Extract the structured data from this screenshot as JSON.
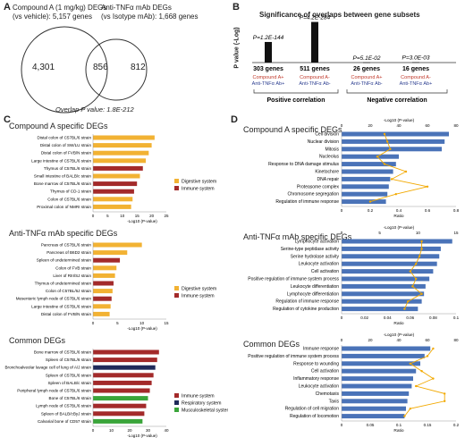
{
  "panels": {
    "A": {
      "label": "A",
      "set1": "Compound A (1 mg/kg) DEGs",
      "set1_sub": "(vs vehicle): 5,157 genes",
      "set2": "Anti-TNFα mAb DEGs",
      "set2_sub": "(vs Isotype mAb): 1,668 genes",
      "left_only": "4,301",
      "overlap": "856",
      "right_only": "812",
      "pvalue_note": "Overlap P value: 1.8E-212"
    },
    "B": {
      "label": "B",
      "title": "Significance of overlaps between gene subsets",
      "ylabel": "P value (-Log)",
      "groups": [
        {
          "genes": "303 genes",
          "line1": "Compound A+",
          "line2": "Anti-TNFα Ab+",
          "p": "P=1.2E-144"
        },
        {
          "genes": "511 genes",
          "line1": "Compound A-",
          "line2": "Anti-TNFα Ab-",
          "p": "P=4.2E-284"
        },
        {
          "genes": "26 genes",
          "line1": "Compound A+",
          "line2": "Anti-TNFα Ab-",
          "p": "P=5.1E-02"
        },
        {
          "genes": "16 genes",
          "line1": "Compound A-",
          "line2": "Anti-TNFα Ab+",
          "p": "P=3.0E-03"
        }
      ],
      "positive": "Positive correlation",
      "negative": "Negative correlation"
    },
    "C": {
      "label": "C",
      "xlabel": "-Log10 (P-value)",
      "colors": {
        "digestive": "#f2b233",
        "immune": "#a32a2a",
        "respiratory": "#1f2a5a",
        "musculo": "#3aa53a"
      },
      "subpanels": [
        {
          "title": "Compound A specific DEGs",
          "xticks": [
            "0",
            "5",
            "10",
            "15",
            "20",
            "25"
          ],
          "xmax": 25,
          "legend": [
            {
              "label": "Digestive system",
              "color": "#f2b233"
            },
            {
              "label": "Immune system",
              "color": "#a32a2a"
            }
          ],
          "bars": [
            {
              "label": "Distal colon of C57BL/6 strain",
              "value": 21,
              "color": "#f2b233"
            },
            {
              "label": "Distal colon of SW/LU strain",
              "value": 20,
              "color": "#f2b233"
            },
            {
              "label": "Distal colon of FVB/N strain",
              "value": 19,
              "color": "#f2b233"
            },
            {
              "label": "Large intestine of C57BL/6 strain",
              "value": 18,
              "color": "#f2b233"
            },
            {
              "label": "Thymus of C57BL/6 strain",
              "value": 17,
              "color": "#a32a2a"
            },
            {
              "label": "Small intestine of BALB/c strain",
              "value": 16,
              "color": "#f2b233"
            },
            {
              "label": "Bone marrow of C57BL/6 strain",
              "value": 15,
              "color": "#a32a2a"
            },
            {
              "label": "Thymus of CD-1 strain",
              "value": 14,
              "color": "#a32a2a"
            },
            {
              "label": "Colon of C57BL/6 strain",
              "value": 13.5,
              "color": "#f2b233"
            },
            {
              "label": "Proximal colon of NMRI strain",
              "value": 13,
              "color": "#f2b233"
            }
          ]
        },
        {
          "title": "Anti-TNFα mAb specific DEGs",
          "xticks": [
            "0",
            "5",
            "10",
            "15"
          ],
          "xmax": 15,
          "legend": [
            {
              "label": "Digestive system",
              "color": "#f2b233"
            },
            {
              "label": "Immune system",
              "color": "#a32a2a"
            }
          ],
          "bars": [
            {
              "label": "Pancreas of C57BL/6 strain",
              "value": 10,
              "color": "#f2b233"
            },
            {
              "label": "Pancreas of B6D2 strain",
              "value": 7,
              "color": "#f2b233"
            },
            {
              "label": "Spleen of undetermined strain",
              "value": 5.5,
              "color": "#a32a2a"
            },
            {
              "label": "Colon of FVB strain",
              "value": 4.8,
              "color": "#f2b233"
            },
            {
              "label": "Liver of RIII/SJ strain",
              "value": 4.5,
              "color": "#f2b233"
            },
            {
              "label": "Thymus of undetermined strain",
              "value": 4.2,
              "color": "#a32a2a"
            },
            {
              "label": "Colon of C57BL/6J strain",
              "value": 4,
              "color": "#f2b233"
            },
            {
              "label": "Mesenteric lymph node of C57BL/6 strain",
              "value": 3.8,
              "color": "#a32a2a"
            },
            {
              "label": "Large intestine of C57BL/6 strain",
              "value": 3.6,
              "color": "#f2b233"
            },
            {
              "label": "Distal colon of FVB/N strain",
              "value": 3.4,
              "color": "#f2b233"
            }
          ]
        },
        {
          "title": "Common DEGs",
          "xticks": [
            "0",
            "10",
            "20",
            "30",
            "40"
          ],
          "xmax": 40,
          "legend": [
            {
              "label": "Immune system",
              "color": "#a32a2a"
            },
            {
              "label": "Respiratory system",
              "color": "#1f2a5a"
            },
            {
              "label": "Musculoskeletal system",
              "color": "#3aa53a"
            }
          ],
          "bars": [
            {
              "label": "Bone marrow of C57BL/6 strain",
              "value": 36,
              "color": "#a32a2a"
            },
            {
              "label": "Spleen of C57BL/6 strain",
              "value": 35,
              "color": "#a32a2a"
            },
            {
              "label": "Bronchoalveolar lavage cell of lung of A/J strain",
              "value": 34,
              "color": "#1f2a5a"
            },
            {
              "label": "Spleen of C57BL/6 strain",
              "value": 33,
              "color": "#a32a2a"
            },
            {
              "label": "Spleen of BALB/c strain",
              "value": 32,
              "color": "#a32a2a"
            },
            {
              "label": "Peripheral lymph node of C57BL/6 strain",
              "value": 31,
              "color": "#a32a2a"
            },
            {
              "label": "Bone of C57BL/6 strain",
              "value": 30,
              "color": "#3aa53a"
            },
            {
              "label": "Lymph node of C57BL/6 strain",
              "value": 29,
              "color": "#a32a2a"
            },
            {
              "label": "Spleen of BALB/cByJ strain",
              "value": 28,
              "color": "#a32a2a"
            },
            {
              "label": "Calvarial bone of CD57 strain",
              "value": 27,
              "color": "#3aa53a"
            }
          ]
        }
      ]
    },
    "D": {
      "label": "D",
      "xlabel": "Ratio",
      "toplabel": "-Log10 (P-value)",
      "subpanels": [
        {
          "title": "Compound A specific DEGs",
          "topticks": [
            "0",
            "20",
            "40",
            "60",
            "80"
          ],
          "topmax": 80,
          "ratioticks": [
            "0",
            "0.2",
            "0.4",
            "0.6",
            "0.8"
          ],
          "ratiomax": 0.8,
          "bars": [
            {
              "label": "Cell division",
              "value": 75,
              "ratio": 0.3
            },
            {
              "label": "Nuclear division",
              "value": 72,
              "ratio": 0.32
            },
            {
              "label": "Mitosis",
              "value": 70,
              "ratio": 0.34
            },
            {
              "label": "Nucleolus",
              "value": 40,
              "ratio": 0.25
            },
            {
              "label": "Response to DNA damage stimulus",
              "value": 38,
              "ratio": 0.3
            },
            {
              "label": "Kinetochore",
              "value": 36,
              "ratio": 0.45
            },
            {
              "label": "DNA repair",
              "value": 34,
              "ratio": 0.35
            },
            {
              "label": "Proteasome complex",
              "value": 33,
              "ratio": 0.6
            },
            {
              "label": "Chromosome segregation",
              "value": 32,
              "ratio": 0.38
            },
            {
              "label": "Regulation of immune response",
              "value": 31,
              "ratio": 0.2
            }
          ]
        },
        {
          "title": "Anti-TNFα mAb specific DEGs",
          "topticks": [
            "0",
            "5",
            "10",
            "15"
          ],
          "topmax": 15,
          "ratioticks": [
            "0",
            "0.02",
            "0.04",
            "0.06",
            "0.08",
            "0.1"
          ],
          "ratiomax": 0.1,
          "bars": [
            {
              "label": "Lymphocyte activation",
              "value": 14.5,
              "ratio": 0.07
            },
            {
              "label": "Serine-type peptidase activity",
              "value": 13,
              "ratio": 0.07
            },
            {
              "label": "Serine hydrolase activity",
              "value": 12.8,
              "ratio": 0.068
            },
            {
              "label": "Leukocyte activation",
              "value": 12.5,
              "ratio": 0.065
            },
            {
              "label": "Cell activation",
              "value": 12,
              "ratio": 0.06
            },
            {
              "label": "Positive regulation of immune system process",
              "value": 11.5,
              "ratio": 0.065
            },
            {
              "label": "Leukocyte differentiation",
              "value": 11,
              "ratio": 0.062
            },
            {
              "label": "Lymphocyte differentiation",
              "value": 10.8,
              "ratio": 0.07
            },
            {
              "label": "Regulation of immune response",
              "value": 10.5,
              "ratio": 0.058
            },
            {
              "label": "Regulation of cytokine production",
              "value": 10,
              "ratio": 0.055
            }
          ]
        },
        {
          "title": "Common DEGs",
          "topticks": [
            "0",
            "20",
            "40",
            "60",
            "80"
          ],
          "topmax": 80,
          "ratioticks": [
            "0",
            "0.05",
            "0.1",
            "0.15",
            "0.2"
          ],
          "ratiomax": 0.2,
          "bars": [
            {
              "label": "Immune response",
              "value": 62,
              "ratio": 0.16
            },
            {
              "label": "Positive regulation of immune system process",
              "value": 58,
              "ratio": 0.15
            },
            {
              "label": "Response to wounding",
              "value": 55,
              "ratio": 0.12
            },
            {
              "label": "Cell activation",
              "value": 52,
              "ratio": 0.14
            },
            {
              "label": "Inflammatory response",
              "value": 50,
              "ratio": 0.16
            },
            {
              "label": "Leukocyte activation",
              "value": 49,
              "ratio": 0.13
            },
            {
              "label": "Chemotaxis",
              "value": 47,
              "ratio": 0.18
            },
            {
              "label": "Taxis",
              "value": 46,
              "ratio": 0.18
            },
            {
              "label": "Regulation of cell migration",
              "value": 45,
              "ratio": 0.12
            },
            {
              "label": "Regulation of locomotion",
              "value": 44,
              "ratio": 0.11
            }
          ]
        }
      ]
    }
  },
  "chart_data": [
    {
      "type": "bar",
      "title": "Significance of overlaps between gene subsets",
      "ylabel": "P value (-Log)",
      "categories": [
        "303 genes",
        "511 genes",
        "26 genes",
        "16 genes"
      ],
      "values": [
        144,
        284,
        1.3,
        2.5
      ]
    }
  ]
}
